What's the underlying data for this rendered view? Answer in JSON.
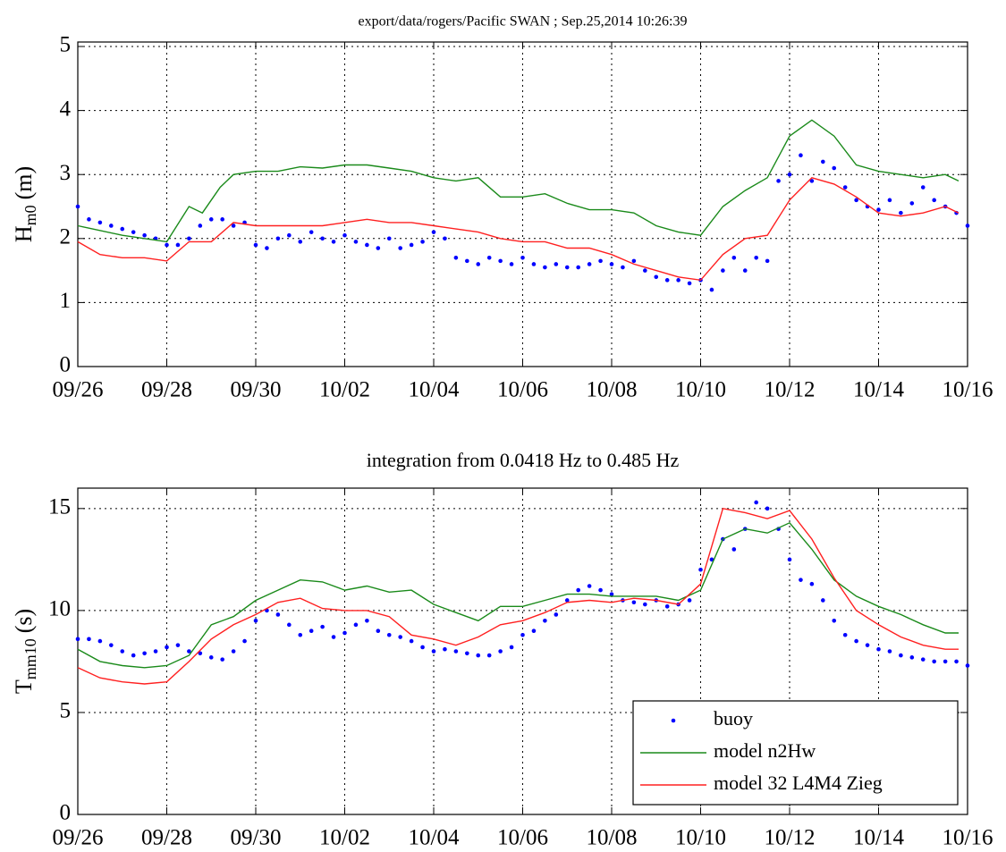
{
  "chart_data": [
    {
      "type": "line",
      "title": "export/data/rogers/Pacific SWAN ; Sep.25,2014 10:26:39",
      "ylabel": {
        "main": "H",
        "sub": "m0",
        "unit": "(m)"
      },
      "xlim": [
        0,
        20
      ],
      "xticks": [
        {
          "value": 0,
          "label": "09/26"
        },
        {
          "value": 2,
          "label": "09/28"
        },
        {
          "value": 4,
          "label": "09/30"
        },
        {
          "value": 6,
          "label": "10/02"
        },
        {
          "value": 8,
          "label": "10/04"
        },
        {
          "value": 10,
          "label": "10/06"
        },
        {
          "value": 12,
          "label": "10/08"
        },
        {
          "value": 14,
          "label": "10/10"
        },
        {
          "value": 16,
          "label": "10/12"
        },
        {
          "value": 18,
          "label": "10/14"
        },
        {
          "value": 20,
          "label": "10/16"
        }
      ],
      "ylim": [
        0,
        5.07
      ],
      "yticks": [
        0,
        1,
        2,
        3,
        4,
        5
      ],
      "grid": true,
      "series": [
        {
          "mode": "markers",
          "color": "#0000ff",
          "x": [
            0,
            0.25,
            0.5,
            0.75,
            1,
            1.25,
            1.5,
            1.75,
            2,
            2.25,
            2.5,
            2.75,
            3,
            3.25,
            3.5,
            3.75,
            4,
            4.25,
            4.5,
            4.75,
            5,
            5.25,
            5.5,
            5.75,
            6,
            6.25,
            6.5,
            6.75,
            7,
            7.25,
            7.5,
            7.75,
            8,
            8.25,
            8.5,
            8.75,
            9,
            9.25,
            9.5,
            9.75,
            10,
            10.25,
            10.5,
            10.75,
            11,
            11.25,
            11.5,
            11.75,
            12,
            12.25,
            12.5,
            12.75,
            13,
            13.25,
            13.5,
            13.75,
            14,
            14.25,
            14.5,
            14.75,
            15,
            15.25,
            15.5,
            15.75,
            16,
            16.25,
            16.5,
            16.75,
            17,
            17.25,
            17.5,
            17.75,
            18,
            18.25,
            18.5,
            18.75,
            19,
            19.25,
            19.5,
            19.75,
            20
          ],
          "values": [
            2.5,
            2.3,
            2.25,
            2.2,
            2.15,
            2.1,
            2.05,
            2.0,
            1.9,
            1.9,
            2.0,
            2.2,
            2.3,
            2.3,
            2.2,
            2.25,
            1.9,
            1.85,
            2.0,
            2.05,
            1.95,
            2.1,
            2.0,
            1.95,
            2.05,
            1.95,
            1.9,
            1.85,
            2.0,
            1.85,
            1.9,
            1.95,
            2.1,
            2.0,
            1.7,
            1.65,
            1.6,
            1.7,
            1.65,
            1.6,
            1.7,
            1.6,
            1.55,
            1.6,
            1.55,
            1.55,
            1.6,
            1.65,
            1.6,
            1.55,
            1.65,
            1.5,
            1.4,
            1.35,
            1.35,
            1.3,
            1.35,
            1.2,
            1.5,
            1.7,
            1.5,
            1.7,
            1.65,
            2.9,
            3.0,
            3.3,
            2.9,
            3.2,
            3.1,
            2.8,
            2.6,
            2.5,
            2.45,
            2.6,
            2.4,
            2.55,
            2.8,
            2.6,
            2.5,
            2.4,
            2.2
          ]
        },
        {
          "mode": "line",
          "color": "#1a8a1a",
          "x": [
            0,
            1,
            1.5,
            2,
            2.5,
            2.8,
            3.2,
            3.5,
            4,
            4.5,
            5,
            5.5,
            6,
            6.5,
            7,
            7.5,
            8,
            8.5,
            9,
            9.5,
            10,
            10.5,
            11,
            11.5,
            12,
            12.5,
            13,
            13.5,
            14,
            14.5,
            15,
            15.5,
            16,
            16.5,
            17,
            17.5,
            18,
            18.5,
            19,
            19.5,
            19.8
          ],
          "values": [
            2.2,
            2.05,
            2.0,
            1.95,
            2.5,
            2.4,
            2.8,
            3.0,
            3.05,
            3.05,
            3.12,
            3.1,
            3.15,
            3.15,
            3.1,
            3.05,
            2.95,
            2.9,
            2.95,
            2.65,
            2.65,
            2.7,
            2.55,
            2.45,
            2.45,
            2.4,
            2.2,
            2.1,
            2.05,
            2.5,
            2.75,
            2.95,
            3.6,
            3.85,
            3.6,
            3.15,
            3.05,
            3.0,
            2.95,
            3.0,
            2.9
          ]
        },
        {
          "mode": "line",
          "color": "#ff2020",
          "x": [
            0,
            0.5,
            1,
            1.5,
            2,
            2.5,
            3,
            3.5,
            4,
            4.5,
            5,
            5.5,
            6,
            6.5,
            7,
            7.5,
            8,
            8.5,
            9,
            9.5,
            10,
            10.5,
            11,
            11.5,
            12,
            12.5,
            13,
            13.5,
            14,
            14.5,
            15,
            15.5,
            16,
            16.5,
            17,
            17.5,
            18,
            18.5,
            19,
            19.5,
            19.8
          ],
          "values": [
            1.95,
            1.75,
            1.7,
            1.7,
            1.65,
            1.95,
            1.95,
            2.25,
            2.2,
            2.2,
            2.2,
            2.2,
            2.25,
            2.3,
            2.25,
            2.25,
            2.2,
            2.15,
            2.1,
            2.0,
            1.95,
            1.95,
            1.85,
            1.85,
            1.75,
            1.6,
            1.5,
            1.4,
            1.35,
            1.75,
            2.0,
            2.05,
            2.6,
            2.95,
            2.85,
            2.65,
            2.4,
            2.35,
            2.4,
            2.5,
            2.4
          ]
        }
      ]
    },
    {
      "type": "line",
      "title": "integration from 0.0418 Hz to 0.485 Hz",
      "ylabel": {
        "main": "T",
        "sub": "mm10",
        "unit": "(s)"
      },
      "xlim": [
        0,
        20
      ],
      "xticks": [
        {
          "value": 0,
          "label": "09/26"
        },
        {
          "value": 2,
          "label": "09/28"
        },
        {
          "value": 4,
          "label": "09/30"
        },
        {
          "value": 6,
          "label": "10/02"
        },
        {
          "value": 8,
          "label": "10/04"
        },
        {
          "value": 10,
          "label": "10/06"
        },
        {
          "value": 12,
          "label": "10/08"
        },
        {
          "value": 14,
          "label": "10/10"
        },
        {
          "value": 16,
          "label": "10/12"
        },
        {
          "value": 18,
          "label": "10/14"
        },
        {
          "value": 20,
          "label": "10/16"
        }
      ],
      "ylim": [
        0,
        16
      ],
      "yticks": [
        0,
        5,
        10,
        15
      ],
      "grid": true,
      "legend": "lower right",
      "series": [
        {
          "name": "buoy",
          "mode": "markers",
          "color": "#0000ff",
          "x": [
            0,
            0.25,
            0.5,
            0.75,
            1,
            1.25,
            1.5,
            1.75,
            2,
            2.25,
            2.5,
            2.75,
            3,
            3.25,
            3.5,
            3.75,
            4,
            4.25,
            4.5,
            4.75,
            5,
            5.25,
            5.5,
            5.75,
            6,
            6.25,
            6.5,
            6.75,
            7,
            7.25,
            7.5,
            7.75,
            8,
            8.25,
            8.5,
            8.75,
            9,
            9.25,
            9.5,
            9.75,
            10,
            10.25,
            10.5,
            10.75,
            11,
            11.25,
            11.5,
            11.75,
            12,
            12.25,
            12.5,
            12.75,
            13,
            13.25,
            13.5,
            13.75,
            14,
            14.25,
            14.5,
            14.75,
            15,
            15.25,
            15.5,
            15.75,
            16,
            16.25,
            16.5,
            16.75,
            17,
            17.25,
            17.5,
            17.75,
            18,
            18.25,
            18.5,
            18.75,
            19,
            19.25,
            19.5,
            19.75,
            20
          ],
          "values": [
            8.6,
            8.6,
            8.5,
            8.3,
            8.0,
            7.8,
            7.9,
            8.0,
            8.2,
            8.3,
            8.0,
            7.9,
            7.7,
            7.6,
            8.0,
            8.5,
            9.5,
            10.0,
            9.8,
            9.3,
            8.8,
            9.0,
            9.2,
            8.7,
            8.9,
            9.3,
            9.5,
            9.0,
            8.8,
            8.7,
            8.5,
            8.2,
            8.0,
            8.1,
            8.0,
            7.9,
            7.8,
            7.8,
            8.0,
            8.2,
            8.8,
            9.0,
            9.5,
            9.8,
            10.5,
            11.0,
            11.2,
            11.0,
            10.8,
            10.5,
            10.4,
            10.3,
            10.5,
            10.2,
            10.3,
            10.5,
            12.0,
            12.5,
            13.5,
            13.0,
            14.0,
            15.3,
            15.0,
            14.0,
            12.5,
            11.5,
            11.3,
            10.5,
            9.5,
            8.8,
            8.5,
            8.3,
            8.1,
            8.0,
            7.8,
            7.7,
            7.6,
            7.5,
            7.5,
            7.5,
            7.3
          ]
        },
        {
          "name": "model n2Hw",
          "mode": "line",
          "color": "#1a8a1a",
          "x": [
            0,
            0.5,
            1,
            1.5,
            2,
            2.5,
            3,
            3.5,
            4,
            4.5,
            5,
            5.5,
            6,
            6.5,
            7,
            7.5,
            8,
            8.5,
            9,
            9.5,
            10,
            10.5,
            11,
            11.5,
            12,
            12.5,
            13,
            13.5,
            14,
            14.5,
            15,
            15.5,
            16,
            16.5,
            17,
            17.5,
            18,
            18.5,
            19,
            19.5,
            19.8
          ],
          "values": [
            8.1,
            7.5,
            7.3,
            7.2,
            7.3,
            7.8,
            9.3,
            9.7,
            10.5,
            11.0,
            11.5,
            11.4,
            11.0,
            11.2,
            10.9,
            11.0,
            10.3,
            9.9,
            9.5,
            10.2,
            10.2,
            10.5,
            10.8,
            10.8,
            10.7,
            10.7,
            10.7,
            10.5,
            11.0,
            13.5,
            14.0,
            13.8,
            14.3,
            13.0,
            11.5,
            10.7,
            10.2,
            9.8,
            9.3,
            8.9,
            8.9
          ]
        },
        {
          "name": "model 32 L4M4 Zieg",
          "mode": "line",
          "color": "#ff2020",
          "x": [
            0,
            0.5,
            1,
            1.5,
            2,
            2.5,
            3,
            3.5,
            4,
            4.5,
            5,
            5.5,
            6,
            6.5,
            7,
            7.5,
            8,
            8.5,
            9,
            9.5,
            10,
            10.5,
            11,
            11.5,
            12,
            12.5,
            13,
            13.5,
            14,
            14.5,
            15,
            15.5,
            16,
            16.5,
            17,
            17.5,
            18,
            18.5,
            19,
            19.5,
            19.8
          ],
          "values": [
            7.2,
            6.7,
            6.5,
            6.4,
            6.5,
            7.5,
            8.6,
            9.3,
            9.8,
            10.4,
            10.6,
            10.1,
            10.0,
            10.0,
            9.7,
            8.8,
            8.6,
            8.3,
            8.7,
            9.3,
            9.5,
            9.9,
            10.4,
            10.5,
            10.4,
            10.6,
            10.5,
            10.3,
            11.3,
            15.0,
            14.8,
            14.5,
            14.9,
            13.5,
            11.6,
            10.0,
            9.3,
            8.7,
            8.3,
            8.1,
            8.1
          ]
        }
      ]
    }
  ]
}
